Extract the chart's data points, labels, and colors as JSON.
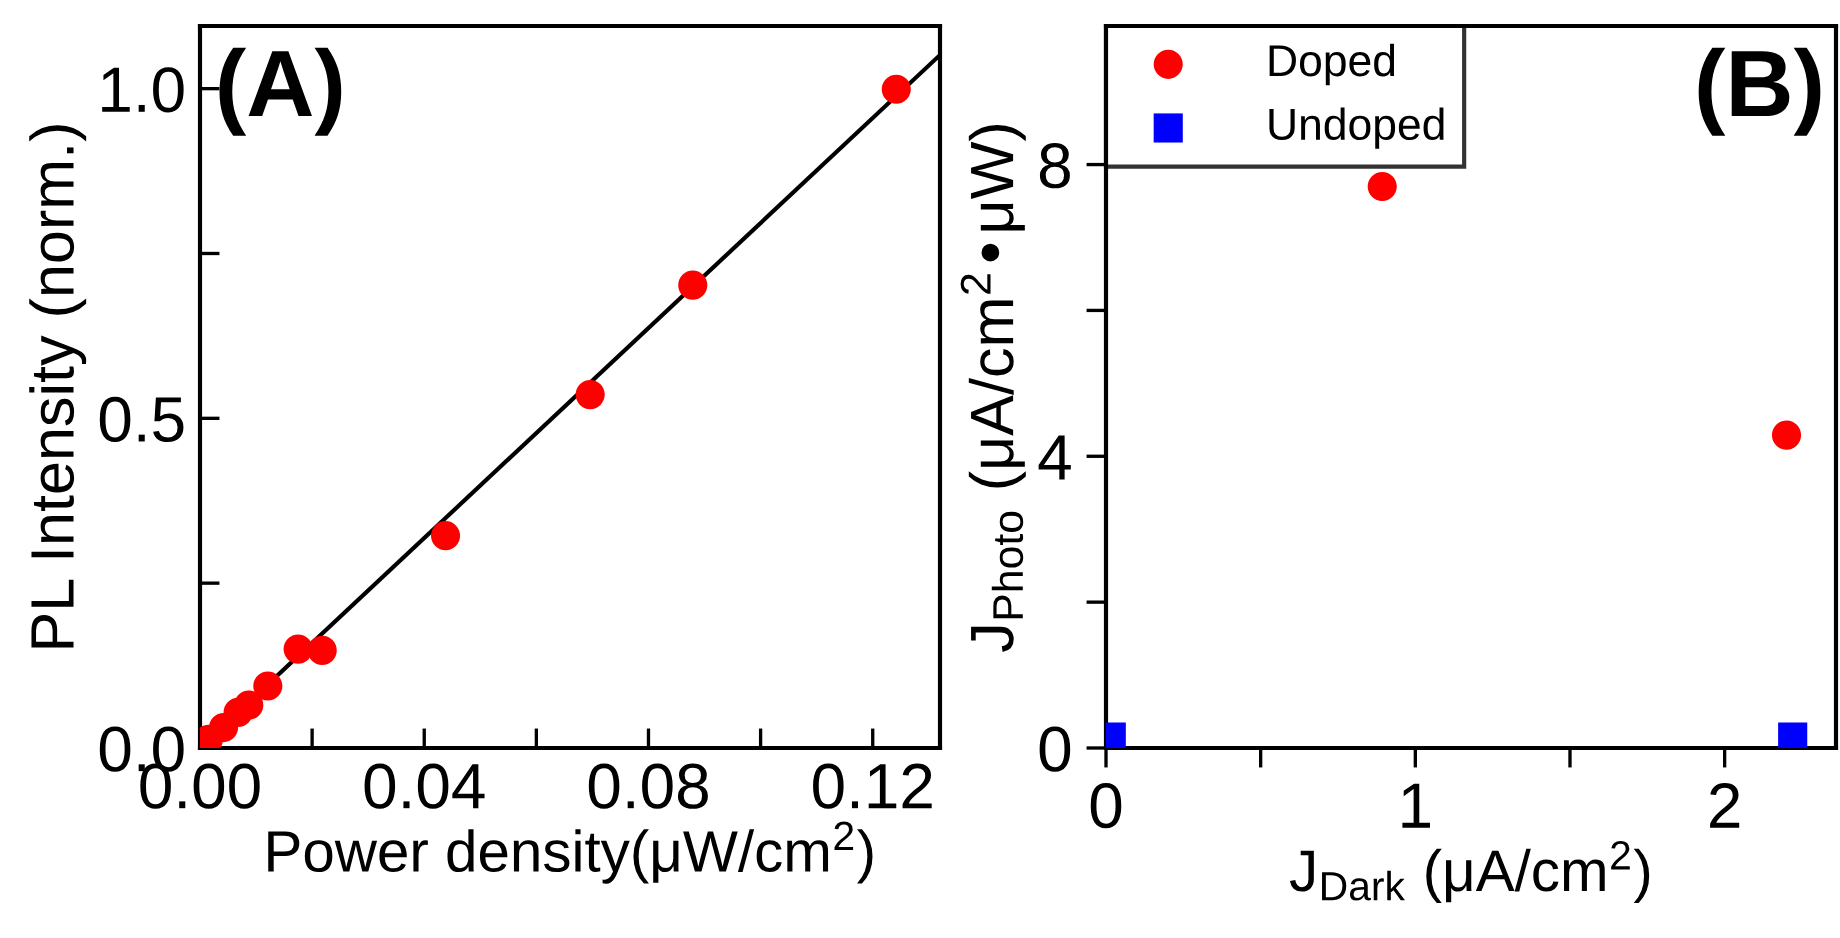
{
  "chart_data": [
    {
      "type": "scatter",
      "annotations": [
        "(A)"
      ],
      "xlabel": "Power density(μW/cm$^{2}$)",
      "ylabel": "PL Intensity (norm.)",
      "xlim": [
        0,
        0.132
      ],
      "ylim": [
        0,
        1.095
      ],
      "xticks": [
        {
          "value": 0,
          "label": "0.00"
        },
        {
          "value": 0.02,
          "label": null
        },
        {
          "value": 0.04,
          "label": "0.04"
        },
        {
          "value": 0.06,
          "label": null
        },
        {
          "value": 0.08,
          "label": "0.08"
        },
        {
          "value": 0.1,
          "label": null
        },
        {
          "value": 0.12,
          "label": "0.12"
        }
      ],
      "yticks": [
        {
          "value": 0,
          "label": "0.0"
        },
        {
          "value": 0.25,
          "label": null
        },
        {
          "value": 0.5,
          "label": "0.5"
        },
        {
          "value": 0.75,
          "label": null
        },
        {
          "value": 1.0,
          "label": "1.0"
        }
      ],
      "grid": false,
      "legend": false,
      "series": [
        {
          "marker": "circle",
          "color": "#ff0000",
          "x": [
            0.0015,
            0.0042,
            0.0068,
            0.0087,
            0.0121,
            0.0175,
            0.0218,
            0.0438,
            0.0696,
            0.0879,
            0.1242
          ],
          "values": [
            0.013,
            0.031,
            0.054,
            0.065,
            0.094,
            0.15,
            0.148,
            0.322,
            0.536,
            0.702,
            0.999
          ]
        },
        {
          "type": "line",
          "line_style": "solid",
          "color": "#000000",
          "x": [
            0,
            0.132
          ],
          "values": [
            0,
            1.051
          ]
        }
      ]
    },
    {
      "type": "scatter",
      "annotations": [
        "(B)"
      ],
      "xlabel": "J$_{Dark}$ (μA/cm$^{2}$)",
      "ylabel": "J$_{Photo}$ (μA/cm$^{2}$•μW)",
      "xlim": [
        0,
        2.36
      ],
      "ylim": [
        0,
        9.9
      ],
      "xticks": [
        0,
        {
          "value": 0.5,
          "label": null
        },
        1,
        {
          "value": 1.5,
          "label": null
        },
        2
      ],
      "yticks": [
        0,
        {
          "value": 2,
          "label": null
        },
        4,
        {
          "value": 6,
          "label": null
        },
        8
      ],
      "grid": false,
      "legend": "top left",
      "series": [
        {
          "name": "Doped",
          "marker": "circle",
          "color": "#ff0000",
          "x": [
            0.893,
            2.2
          ],
          "values": [
            7.7,
            4.29
          ]
        },
        {
          "name": "Undoped",
          "marker": "square",
          "color": "#0000ff",
          "x": [
            0.017,
            2.22
          ],
          "values": [
            0.15,
            0.15
          ]
        }
      ]
    }
  ]
}
